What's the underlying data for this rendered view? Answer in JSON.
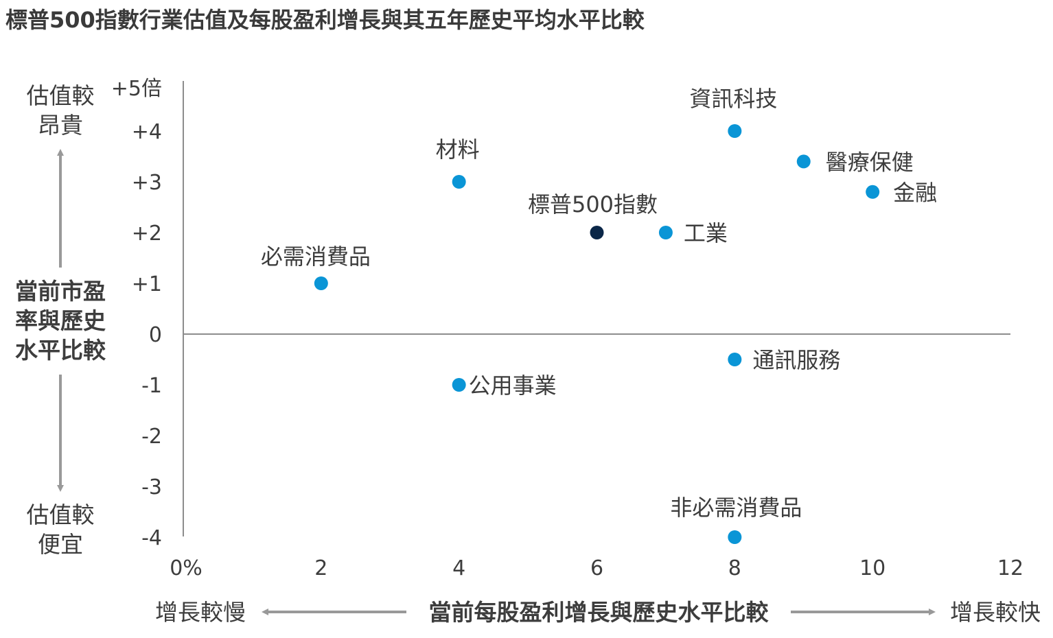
{
  "title": "標普500指數行業估值及每股盈利增長與其五年歷史平均水平比較",
  "chart_data": {
    "type": "scatter",
    "title": "標普500指數行業估值及每股盈利增長與其五年歷史平均水平比較",
    "xlabel": "當前每股盈利增長與歷史水平比較",
    "ylabel_lines": [
      "當前市盈",
      "率與歷史",
      "水平比較"
    ],
    "x_low_label": "增長較慢",
    "x_high_label": "增長較快",
    "y_high_label_lines": [
      "估值較",
      "昂貴"
    ],
    "y_low_label_lines": [
      "估值較",
      "便宜"
    ],
    "xlim": [
      0,
      12
    ],
    "ylim": [
      -4,
      5
    ],
    "x_ticks": [
      {
        "value": 0,
        "label": "0%"
      },
      {
        "value": 2,
        "label": "2"
      },
      {
        "value": 4,
        "label": "4"
      },
      {
        "value": 6,
        "label": "6"
      },
      {
        "value": 8,
        "label": "8"
      },
      {
        "value": 10,
        "label": "10"
      },
      {
        "value": 12,
        "label": "12"
      }
    ],
    "y_ticks": [
      {
        "value": 5,
        "label": "+5倍"
      },
      {
        "value": 4,
        "label": "+4"
      },
      {
        "value": 3,
        "label": "+3"
      },
      {
        "value": 2,
        "label": "+2"
      },
      {
        "value": 1,
        "label": "+1"
      },
      {
        "value": 0,
        "label": "0"
      },
      {
        "value": -1,
        "label": "-1"
      },
      {
        "value": -2,
        "label": "-2"
      },
      {
        "value": -3,
        "label": "-3"
      },
      {
        "value": -4,
        "label": "-4"
      }
    ],
    "points": [
      {
        "label": "資訊科技",
        "x": 8,
        "y": 4.0,
        "color": "#0a95d6",
        "label_pos": "above"
      },
      {
        "label": "醫療保健",
        "x": 9,
        "y": 3.4,
        "color": "#0a95d6",
        "label_pos": "right"
      },
      {
        "label": "金融",
        "x": 10,
        "y": 2.8,
        "color": "#0a95d6",
        "label_pos": "right"
      },
      {
        "label": "材料",
        "x": 4,
        "y": 3.0,
        "color": "#0a95d6",
        "label_pos": "above"
      },
      {
        "label": "標普500指數",
        "x": 6,
        "y": 2.0,
        "color": "#0b2748",
        "label_pos": "above"
      },
      {
        "label": "工業",
        "x": 7,
        "y": 2.0,
        "color": "#0a95d6",
        "label_pos": "right"
      },
      {
        "label": "必需消費品",
        "x": 2,
        "y": 1.0,
        "color": "#0a95d6",
        "label_pos": "above"
      },
      {
        "label": "通訊服務",
        "x": 8,
        "y": -0.5,
        "color": "#0a95d6",
        "label_pos": "right"
      },
      {
        "label": "公用事業",
        "x": 4,
        "y": -1.0,
        "color": "#0a95d6",
        "label_pos": "right"
      },
      {
        "label": "非必需消費品",
        "x": 8,
        "y": -4.0,
        "color": "#0a95d6",
        "label_pos": "above"
      }
    ],
    "colors": {
      "sector": "#0a95d6",
      "index": "#0b2748",
      "axis": "#8c8c8c",
      "arrow": "#999999"
    }
  }
}
